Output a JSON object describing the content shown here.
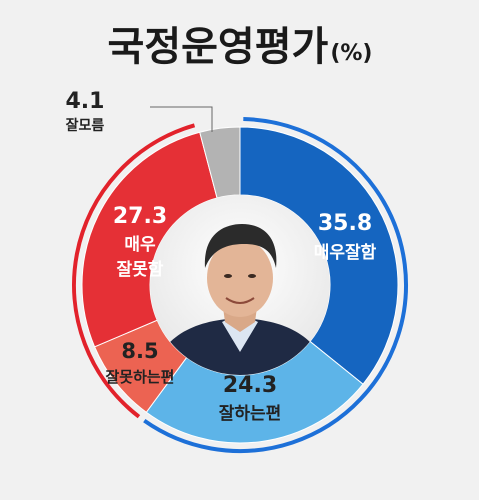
{
  "chart_data": {
    "type": "pie",
    "title": "국정운영평가",
    "unit": "(%)",
    "slices": [
      {
        "label": "매우잘함",
        "value": 35.8,
        "color": "#1565c0"
      },
      {
        "label": "잘하는편",
        "value": 24.3,
        "color": "#5db4e8"
      },
      {
        "label": "잘못하는편",
        "value": 8.5,
        "color": "#ec6352"
      },
      {
        "label": "매우 잘못함",
        "value": 27.3,
        "color": "#e53036"
      },
      {
        "label": "잘모름",
        "value": 4.1,
        "color": "#b3b3b3"
      }
    ],
    "slice_labels": {
      "s0": {
        "value": "35.8",
        "name": "매우잘함"
      },
      "s1": {
        "value": "24.3",
        "name": "잘하는편"
      },
      "s2": {
        "value": "8.5",
        "name": "잘못하는편"
      },
      "s3": {
        "value": "27.3",
        "line1": "매우",
        "line2": "잘못함"
      },
      "s4": {
        "value": "4.1",
        "name": "잘모름"
      }
    },
    "positive_arc_color": "#1d70d8",
    "negative_arc_color": "#e2222b"
  }
}
